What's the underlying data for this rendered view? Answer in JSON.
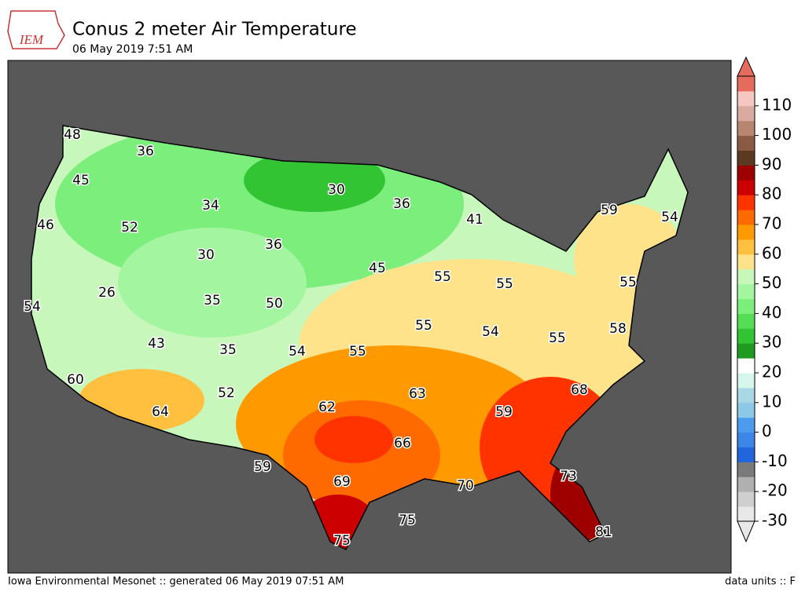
{
  "header": {
    "logo": "IEM",
    "title": "Conus 2 meter Air Temperature",
    "subtitle": "06 May 2019 7:51 AM"
  },
  "colorbar": {
    "lim": [
      -30,
      120
    ],
    "ticks": [
      -30,
      -20,
      -10,
      0,
      10,
      20,
      30,
      40,
      50,
      60,
      70,
      80,
      90,
      100,
      110
    ],
    "colors": [
      "#e8e8e8",
      "#cfcfcf",
      "#b0b0b0",
      "#7a7a7a",
      "#2266dd",
      "#3b86e6",
      "#4b9cef",
      "#8cc8e8",
      "#a8d8e4",
      "#d6f5ec",
      "#ffffff",
      "#1f9a1f",
      "#33c433",
      "#55dd55",
      "#7cee7c",
      "#a3f5a0",
      "#c8f7bc",
      "#ffe38a",
      "#ffc040",
      "#ff9900",
      "#ff6a00",
      "#ff3300",
      "#cc0000",
      "#9e0000",
      "#5c3a22",
      "#8a5a44",
      "#b88670",
      "#d8aaa0",
      "#f4c8c0",
      "#e56c5c"
    ]
  },
  "labels": [
    48,
    36,
    45,
    34,
    30,
    36,
    41,
    59,
    54,
    46,
    52,
    30,
    36,
    45,
    55,
    55,
    55,
    26,
    35,
    50,
    54,
    55,
    54,
    58,
    55,
    43,
    35,
    54,
    55,
    60,
    68,
    63,
    52,
    62,
    64,
    59,
    66,
    59,
    69,
    70,
    73,
    75,
    75,
    81
  ],
  "footer": {
    "left": "Iowa Environmental Mesonet :: generated 06 May 2019 07:51 AM",
    "right": "data units :: F"
  }
}
